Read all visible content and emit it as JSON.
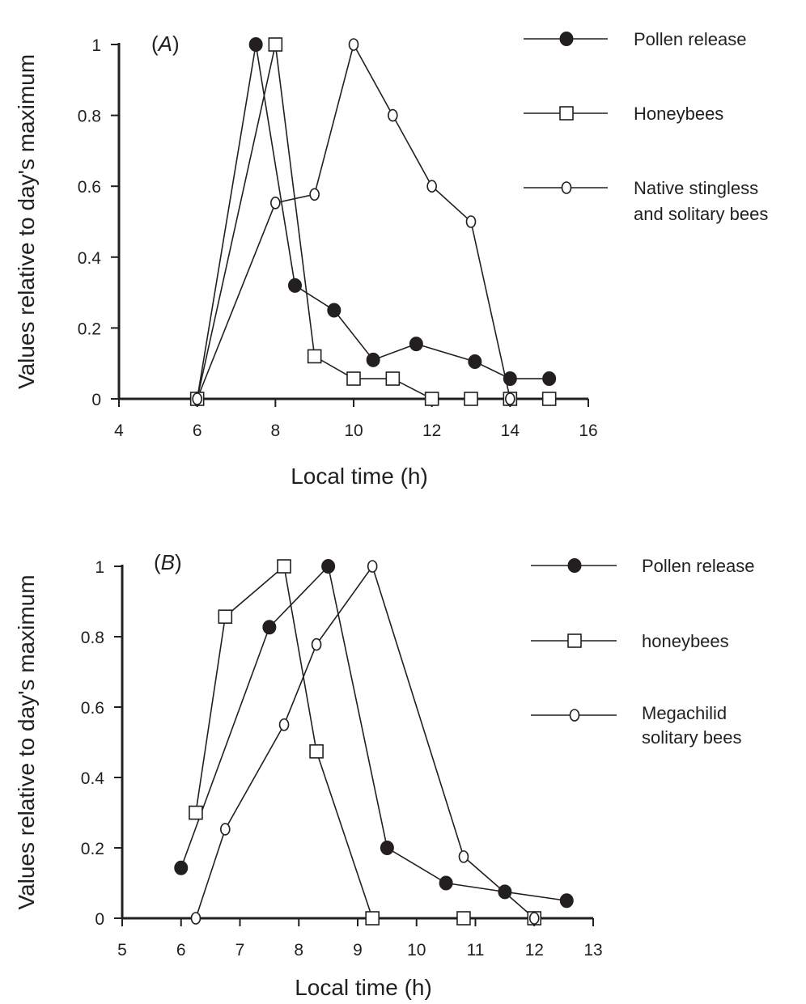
{
  "chart_data": [
    {
      "type": "line",
      "panel_label": "(A)",
      "xlabel": "Local time (h)",
      "ylabel": "Values relative to day's maximum",
      "xlim": [
        4,
        16
      ],
      "ylim": [
        0,
        1
      ],
      "xticks": [
        4,
        6,
        8,
        10,
        12,
        14,
        16
      ],
      "yticks": [
        0,
        0.2,
        0.4,
        0.6,
        0.8,
        1
      ],
      "ytick_labels": [
        "0",
        "0.2",
        "0.4",
        "0.6",
        "0.8",
        "1"
      ],
      "grid": false,
      "legend_position": "top-right",
      "series": [
        {
          "name": "Pollen release",
          "marker": "filled-circle",
          "x": [
            6,
            7.5,
            8.5,
            9.5,
            10.5,
            11.6,
            13.1,
            14,
            15
          ],
          "y": [
            0,
            1,
            0.32,
            0.25,
            0.11,
            0.155,
            0.105,
            0.057,
            0.057
          ]
        },
        {
          "name": "Honeybees",
          "marker": "open-square",
          "x": [
            6,
            8,
            9,
            10,
            11,
            12,
            13,
            14,
            15
          ],
          "y": [
            0,
            1,
            0.12,
            0.057,
            0.057,
            0,
            0,
            0,
            0
          ]
        },
        {
          "name": "Native stingless and solitary bees",
          "name_lines": [
            "Native stingless",
            "and solitary bees"
          ],
          "marker": "open-circle",
          "x": [
            6,
            8,
            9,
            10,
            11,
            12,
            13,
            14
          ],
          "y": [
            0,
            0.553,
            0.577,
            1,
            0.8,
            0.6,
            0.5,
            0
          ]
        }
      ]
    },
    {
      "type": "line",
      "panel_label": "(B)",
      "xlabel": "Local time (h)",
      "ylabel": "Values relative to day's maximum",
      "xlim": [
        5,
        13
      ],
      "ylim": [
        0,
        1
      ],
      "xticks": [
        5,
        6,
        7,
        8,
        9,
        10,
        11,
        12,
        13
      ],
      "yticks": [
        0,
        0.2,
        0.4,
        0.6,
        0.8,
        1
      ],
      "ytick_labels": [
        "0",
        "0.2",
        "0.4",
        "0.6",
        "0.8",
        "1"
      ],
      "grid": false,
      "legend_position": "top-right",
      "series": [
        {
          "name": "Pollen release",
          "marker": "filled-circle",
          "x": [
            6,
            7.5,
            8.5,
            9.5,
            10.5,
            11.5,
            12.55
          ],
          "y": [
            0.143,
            0.827,
            1,
            0.2,
            0.1,
            0.075,
            0.05
          ]
        },
        {
          "name": "honeybees",
          "marker": "open-square",
          "x": [
            6.25,
            6.75,
            7.75,
            8.3,
            9.25,
            10.8,
            12
          ],
          "y": [
            0.3,
            0.857,
            1,
            0.474,
            0,
            0,
            0
          ]
        },
        {
          "name": "Megachilid solitary bees",
          "name_lines": [
            "Megachilid",
            "solitary bees"
          ],
          "marker": "open-circle",
          "x": [
            6.25,
            6.75,
            7.75,
            8.3,
            9.25,
            10.8,
            12
          ],
          "y": [
            0,
            0.253,
            0.55,
            0.778,
            1,
            0.175,
            0
          ]
        }
      ]
    }
  ]
}
